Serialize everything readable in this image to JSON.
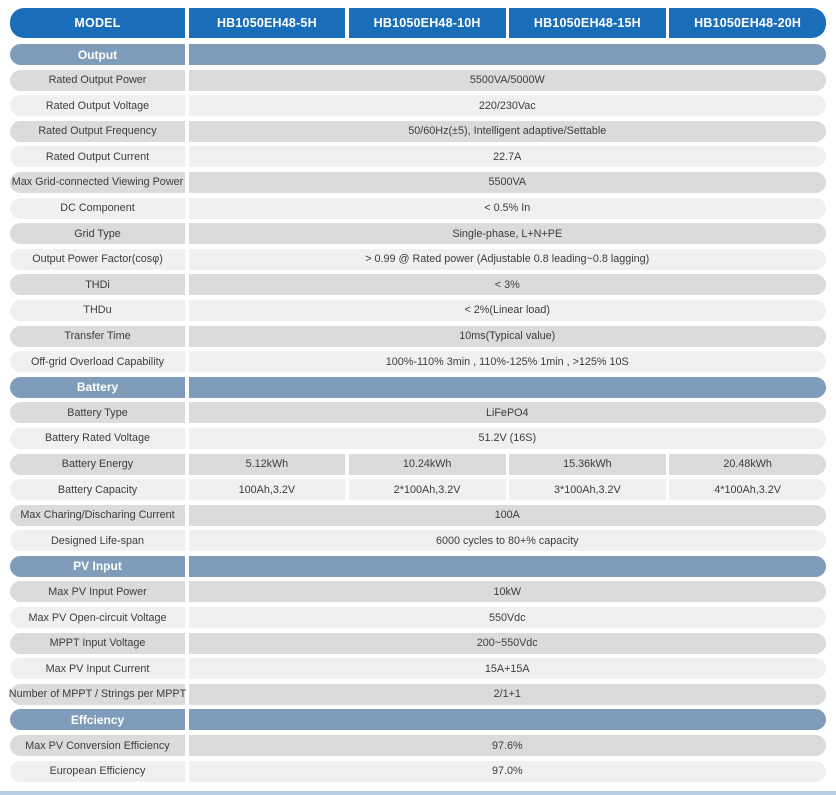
{
  "header": {
    "model_label": "MODEL",
    "models": [
      "HB1050EH48-5H",
      "HB1050EH48-10H",
      "HB1050EH48-15H",
      "HB1050EH48-20H"
    ]
  },
  "colors": {
    "header_blue": "#1a6db9",
    "section_blue": "#7f9cba",
    "row_dark": "#dbdbdb",
    "row_light": "#f1f0ee",
    "bottom_line": "#b9cfe3"
  },
  "rows": [
    {
      "type": "section",
      "label": "Output"
    },
    {
      "type": "spec",
      "label": "Rated Output Power",
      "value": "5500VA/5000W"
    },
    {
      "type": "spec",
      "label": "Rated Output Voltage",
      "value": "220/230Vac"
    },
    {
      "type": "spec",
      "label": "Rated Output Frequency",
      "value": "50/60Hz(±5),  Intelligent adaptive/Settable"
    },
    {
      "type": "spec",
      "label": "Rated Output Current",
      "value": "22.7A"
    },
    {
      "type": "spec",
      "label": "Max Grid-connected Viewing Power",
      "value": "5500VA"
    },
    {
      "type": "spec",
      "label": "DC Component",
      "value": "< 0.5% In"
    },
    {
      "type": "spec",
      "label": "Grid Type",
      "value": "Single-phase,  L+N+PE"
    },
    {
      "type": "spec",
      "label": "Output Power Factor(cosφ)",
      "value": "> 0.99 @ Rated power  (Adjustable 0.8 leading~0.8 lagging)"
    },
    {
      "type": "spec",
      "label": "THDi",
      "value": "< 3%"
    },
    {
      "type": "spec",
      "label": "THDu",
      "value": "< 2%(Linear load)"
    },
    {
      "type": "spec",
      "label": "Transfer Time",
      "value": "10ms(Typical value)"
    },
    {
      "type": "spec",
      "label": "Off-grid Overload Capability",
      "value": "100%-110% 3min , 110%-125% 1min , >125% 10S"
    },
    {
      "type": "section",
      "label": "Battery"
    },
    {
      "type": "spec",
      "label": "Battery Type",
      "value": "LiFePO4"
    },
    {
      "type": "spec",
      "label": "Battery Rated Voltage",
      "value": "51.2V  (16S)"
    },
    {
      "type": "multi",
      "label": "Battery Energy",
      "values": [
        "5.12kWh",
        "10.24kWh",
        "15.36kWh",
        "20.48kWh"
      ]
    },
    {
      "type": "multi",
      "label": "Battery Capacity",
      "values": [
        "100Ah,3.2V",
        "2*100Ah,3.2V",
        "3*100Ah,3.2V",
        "4*100Ah,3.2V"
      ]
    },
    {
      "type": "spec",
      "label": "Max Charing/Discharing Current",
      "value": "100A"
    },
    {
      "type": "spec",
      "label": "Designed Life-span",
      "value": "6000 cycles to 80+% capacity"
    },
    {
      "type": "section",
      "label": "PV Input"
    },
    {
      "type": "spec",
      "label": "Max PV Input Power",
      "value": "10kW"
    },
    {
      "type": "spec",
      "label": "Max PV Open-circuit Voltage",
      "value": "550Vdc"
    },
    {
      "type": "spec",
      "label": "MPPT Input Voltage",
      "value": "200~550Vdc"
    },
    {
      "type": "spec",
      "label": "Max PV Input Current",
      "value": "15A+15A"
    },
    {
      "type": "spec",
      "label": "Number of MPPT / Strings per MPPT",
      "value": "2/1+1"
    },
    {
      "type": "section",
      "label": "Effciency"
    },
    {
      "type": "spec",
      "label": "Max PV Conversion Efficiency",
      "value": "97.6%"
    },
    {
      "type": "spec",
      "label": "European Efficiency",
      "value": "97.0%"
    }
  ]
}
